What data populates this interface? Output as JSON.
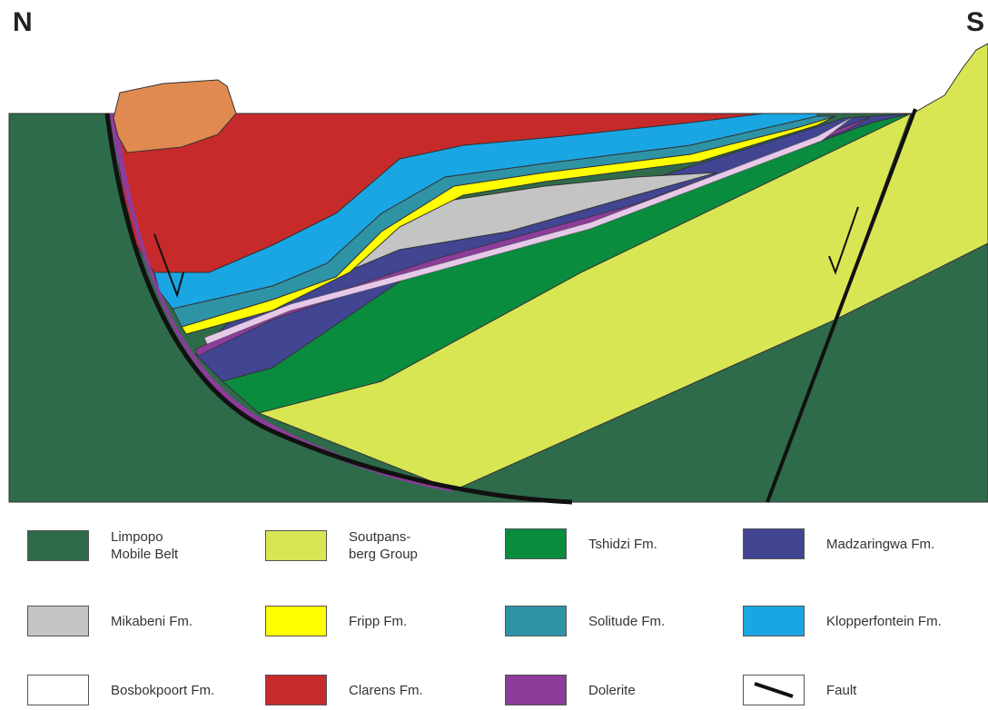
{
  "directions": {
    "north": "N",
    "south": "S"
  },
  "colors": {
    "limpopo": "#2e6b4a",
    "soutpansberg": "#d8e654",
    "tshidzi": "#0a8c3e",
    "madzaringwa": "#414592",
    "mikabeni": "#c4c4c4",
    "fripp": "#ffff00",
    "solitude": "#2f93a6",
    "klopperfontein": "#1aa6e3",
    "bosbokpoort": "#ffffff",
    "clarens": "#c72a2a",
    "dolerite": "#8c3c9a",
    "capping": "#e08a52",
    "fault": "#111111"
  },
  "legend": [
    {
      "label": "Limpopo\nMobile Belt",
      "color": "#2e6b4a",
      "name": "legend-limpopo-mobile-belt"
    },
    {
      "label": "Soutpans-\nberg Group",
      "color": "#d8e654",
      "name": "legend-soutpansberg-group"
    },
    {
      "label": "Tshidzi Fm.",
      "color": "#0a8c3e",
      "name": "legend-tshidzi-fm"
    },
    {
      "label": "Madzaringwa Fm.",
      "color": "#414592",
      "name": "legend-madzaringwa-fm"
    },
    {
      "label": "Mikabeni Fm.",
      "color": "#c4c4c4",
      "name": "legend-mikabeni-fm"
    },
    {
      "label": "Fripp Fm.",
      "color": "#ffff00",
      "name": "legend-fripp-fm"
    },
    {
      "label": "Solitude Fm.",
      "color": "#2f93a6",
      "name": "legend-solitude-fm"
    },
    {
      "label": "Klopperfontein Fm.",
      "color": "#1aa6e3",
      "name": "legend-klopperfontein-fm"
    },
    {
      "label": "Bosbokpoort Fm.",
      "color": "#ffffff",
      "name": "legend-bosbokpoort-fm"
    },
    {
      "label": "Clarens Fm.",
      "color": "#c72a2a",
      "name": "legend-clarens-fm"
    },
    {
      "label": "Dolerite",
      "color": "#8c3c9a",
      "name": "legend-dolerite"
    },
    {
      "label": "Fault",
      "color": "#ffffff",
      "name": "legend-fault",
      "fault": true
    }
  ]
}
